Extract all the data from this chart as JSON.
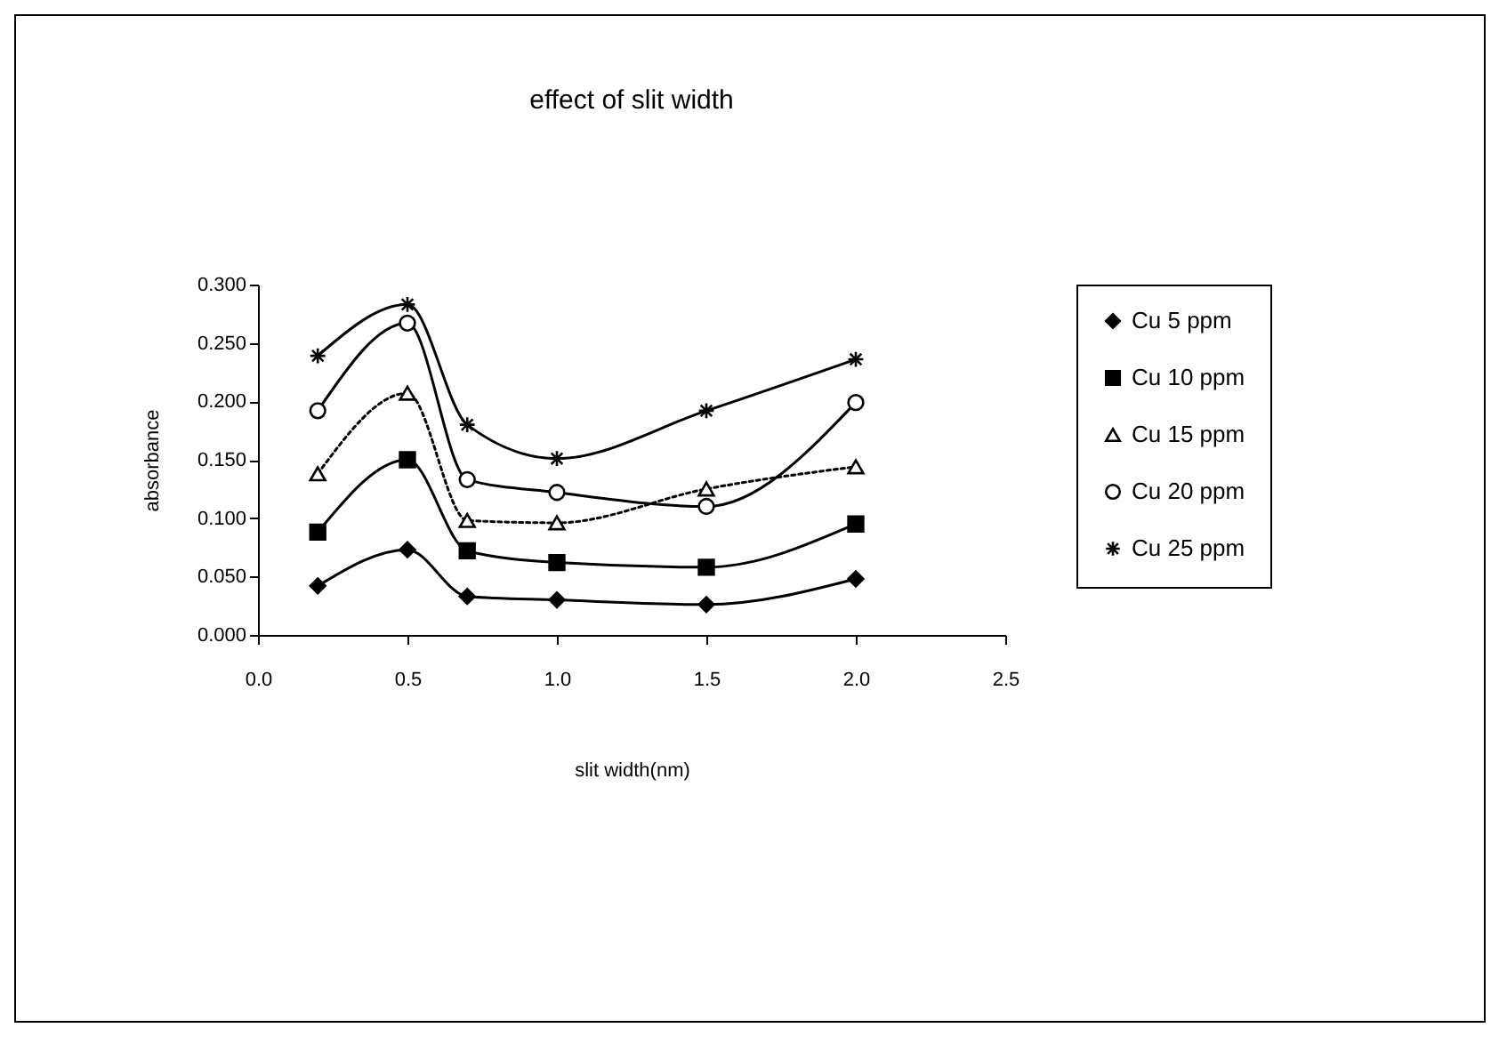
{
  "chart_data": {
    "type": "line",
    "title": "effect of slit width",
    "xlabel": "slit width(nm)",
    "ylabel": "absorbance",
    "x": [
      0.2,
      0.5,
      0.7,
      1.0,
      1.5,
      2.0
    ],
    "series": [
      {
        "name": "Cu 5 ppm",
        "color": "#000000",
        "marker": "diamond",
        "line_style": "solid",
        "values": [
          0.042,
          0.073,
          0.033,
          0.03,
          0.026,
          0.048
        ]
      },
      {
        "name": "Cu 10 ppm",
        "color": "#000000",
        "marker": "square",
        "line_style": "solid",
        "values": [
          0.088,
          0.15,
          0.072,
          0.062,
          0.058,
          0.095
        ]
      },
      {
        "name": "Cu 15 ppm",
        "color": "#000000",
        "marker": "triangle",
        "line_style": "dotted",
        "values": [
          0.138,
          0.207,
          0.098,
          0.096,
          0.125,
          0.144
        ]
      },
      {
        "name": "Cu 20 ppm",
        "color": "#000000",
        "marker": "circle",
        "line_style": "solid",
        "values": [
          0.192,
          0.267,
          0.133,
          0.122,
          0.11,
          0.199
        ]
      },
      {
        "name": "Cu 25 ppm",
        "color": "#000000",
        "marker": "cross",
        "line_style": "solid",
        "values": [
          0.239,
          0.283,
          0.18,
          0.151,
          0.192,
          0.236
        ]
      }
    ],
    "xlim": [
      0,
      2.5
    ],
    "xticks": [
      {
        "value": 0,
        "label": "0.0"
      },
      {
        "value": 0.5,
        "label": "0.5"
      },
      {
        "value": 1,
        "label": "1.0"
      },
      {
        "value": 1.5,
        "label": "1.5"
      },
      {
        "value": 2,
        "label": "2.0"
      },
      {
        "value": 2.5,
        "label": "2.5"
      }
    ],
    "ylim": [
      0,
      0.3
    ],
    "yticks": [
      {
        "value": 0,
        "label": "0.000"
      },
      {
        "value": 0.05,
        "label": "0.050"
      },
      {
        "value": 0.1,
        "label": "0.100"
      },
      {
        "value": 0.15,
        "label": "0.150"
      },
      {
        "value": 0.2,
        "label": "0.200"
      },
      {
        "value": 0.25,
        "label": "0.250"
      },
      {
        "value": 0.3,
        "label": "0.300"
      }
    ],
    "grid": false,
    "legend": "right"
  }
}
